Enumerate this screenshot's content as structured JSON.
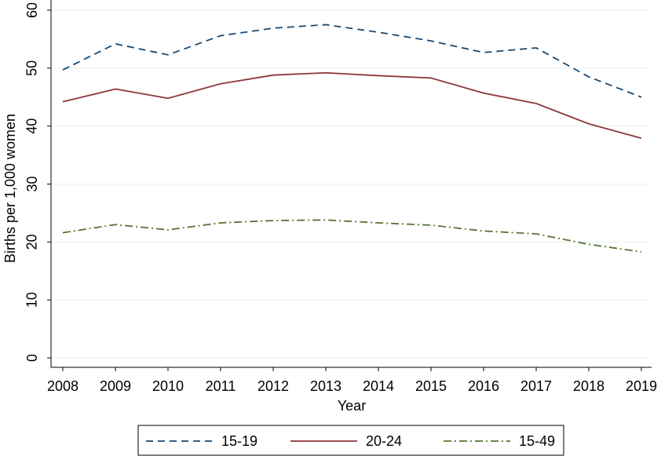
{
  "chart_data": {
    "type": "line",
    "x_label": "Year",
    "y_label": "Births per 1,000 women",
    "x": [
      2008,
      2009,
      2010,
      2011,
      2012,
      2013,
      2014,
      2015,
      2016,
      2017,
      2018,
      2019
    ],
    "xlim": [
      2008,
      2019
    ],
    "xticks": [
      2008,
      2009,
      2010,
      2011,
      2012,
      2013,
      2014,
      2015,
      2016,
      2017,
      2018,
      2019
    ],
    "ylim": [
      0,
      60
    ],
    "yticks": [
      0,
      10,
      20,
      30,
      40,
      50,
      60
    ],
    "grid": true,
    "legend": "bottom",
    "series": [
      {
        "name": "15-19",
        "color": "#1a476f",
        "dash": "dashed",
        "values": [
          49.7,
          54.2,
          52.3,
          55.6,
          56.9,
          57.5,
          56.2,
          54.7,
          52.7,
          53.5,
          48.5,
          45.0
        ]
      },
      {
        "name": "20-24",
        "color": "#90353b",
        "dash": "solid",
        "values": [
          44.2,
          46.4,
          44.8,
          47.3,
          48.8,
          49.2,
          48.7,
          48.3,
          45.7,
          43.9,
          40.4,
          37.9
        ]
      },
      {
        "name": "15-49",
        "color": "#55752f",
        "dash": "dashdot",
        "values": [
          21.6,
          23.0,
          22.1,
          23.3,
          23.7,
          23.8,
          23.3,
          22.9,
          21.9,
          21.4,
          19.6,
          18.3
        ]
      }
    ]
  }
}
